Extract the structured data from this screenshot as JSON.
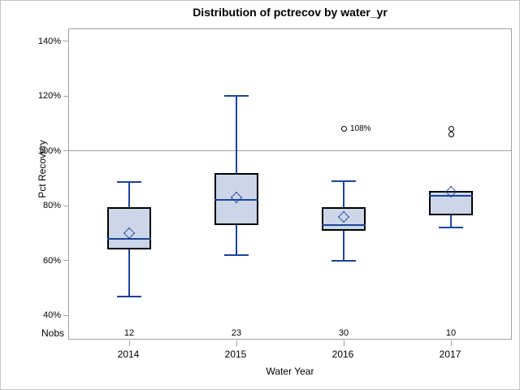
{
  "figure": {
    "title": "Distribution of pctrecov by water_yr"
  },
  "y_axis": {
    "title": "Pct Recovery",
    "tick_values": [
      140,
      120,
      100,
      80,
      60,
      40
    ],
    "tick_labels": [
      "140%",
      "120%",
      "100%",
      "80%",
      "60%",
      "40%"
    ],
    "min": 40,
    "max": 140,
    "reference_line_value": 100
  },
  "x_axis": {
    "title": "Water Year",
    "categories": [
      "2014",
      "2015",
      "2016",
      "2017"
    ]
  },
  "nobs_row": {
    "label": "Nobs",
    "values": [
      "12",
      "23",
      "30",
      "10"
    ]
  },
  "chart_data": {
    "type": "boxplot",
    "title": "Distribution of pctrecov by water_yr",
    "xlabel": "Water Year",
    "ylabel": "Pct Recovery",
    "ylim": [
      40,
      140
    ],
    "grid": false,
    "legend": "none",
    "reference_line": 100,
    "categories": [
      "2014",
      "2015",
      "2016",
      "2017"
    ],
    "n_obs": [
      12,
      23,
      30,
      10
    ],
    "series": [
      {
        "category": "2014",
        "whisker_low": 47,
        "q1": 64,
        "median": 68,
        "q3": 79.5,
        "whisker_high": 88.5,
        "mean": 70,
        "outliers": []
      },
      {
        "category": "2015",
        "whisker_low": 62,
        "q1": 73,
        "median": 82,
        "q3": 92,
        "whisker_high": 120,
        "mean": 83,
        "outliers": []
      },
      {
        "category": "2016",
        "whisker_low": 60,
        "q1": 71,
        "median": 73,
        "q3": 79.5,
        "whisker_high": 89,
        "mean": 76,
        "outliers": [
          {
            "value": 108,
            "label": "108%"
          }
        ]
      },
      {
        "category": "2017",
        "whisker_low": 72,
        "q1": 76.5,
        "median": 83.5,
        "q3": 85.5,
        "whisker_high": 85.5,
        "mean": 85,
        "outliers": [
          {
            "value": 108
          },
          {
            "value": 106
          }
        ]
      }
    ]
  },
  "colors": {
    "box_fill": "#ccd6e8",
    "box_border": "#000000",
    "line_blue": "#1c449c",
    "axis_gray": "#a1a1a1",
    "reference_line": "#a1a1a1",
    "outlier_stroke": "#000000",
    "text": "#000000"
  }
}
